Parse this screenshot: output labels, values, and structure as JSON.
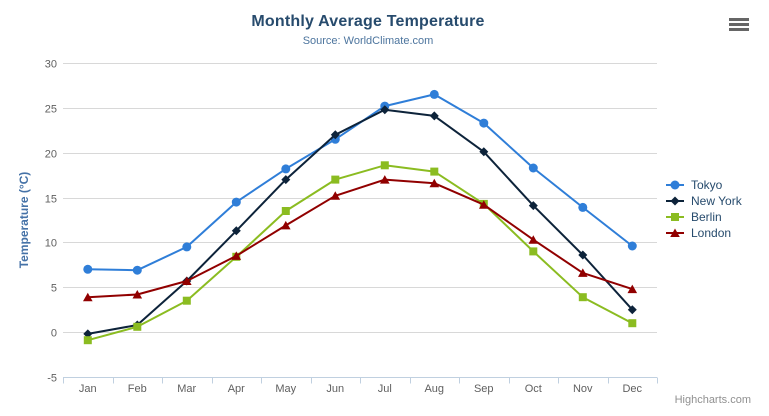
{
  "credits_label": "Highcharts.com",
  "menu": {
    "icon": "hamburger-icon",
    "bar_color": "#666666"
  },
  "colors": {
    "title": "#274b6d",
    "subtitle": "#4d759e",
    "axis_label": "#606060",
    "axis_title": "#4572a7",
    "grid": "#d8d8d8",
    "axis_line": "#c0d0e0",
    "legend_text": "#274b6d",
    "credits": "#909090"
  },
  "chart_data": {
    "type": "line",
    "title": "Monthly Average Temperature",
    "subtitle": "Source: WorldClimate.com",
    "xlabel": "",
    "ylabel": "Temperature (°C)",
    "ylim": [
      -5,
      30
    ],
    "ytick_interval": 5,
    "grid": true,
    "legend_position": "right",
    "categories": [
      "Jan",
      "Feb",
      "Mar",
      "Apr",
      "May",
      "Jun",
      "Jul",
      "Aug",
      "Sep",
      "Oct",
      "Nov",
      "Dec"
    ],
    "series": [
      {
        "name": "Tokyo",
        "color": "#2f7ed8",
        "marker": "circle",
        "values": [
          7.0,
          6.9,
          9.5,
          14.5,
          18.2,
          21.5,
          25.2,
          26.5,
          23.3,
          18.3,
          13.9,
          9.6
        ]
      },
      {
        "name": "New York",
        "color": "#0d233a",
        "marker": "diamond",
        "values": [
          -0.2,
          0.8,
          5.7,
          11.3,
          17.0,
          22.0,
          24.8,
          24.1,
          20.1,
          14.1,
          8.6,
          2.5
        ]
      },
      {
        "name": "Berlin",
        "color": "#8bbc21",
        "marker": "square",
        "values": [
          -0.9,
          0.6,
          3.5,
          8.4,
          13.5,
          17.0,
          18.6,
          17.9,
          14.3,
          9.0,
          3.9,
          1.0
        ]
      },
      {
        "name": "London",
        "color": "#910000",
        "marker": "triangle",
        "values": [
          3.9,
          4.2,
          5.7,
          8.5,
          11.9,
          15.2,
          17.0,
          16.6,
          14.2,
          10.3,
          6.6,
          4.8
        ]
      }
    ]
  }
}
